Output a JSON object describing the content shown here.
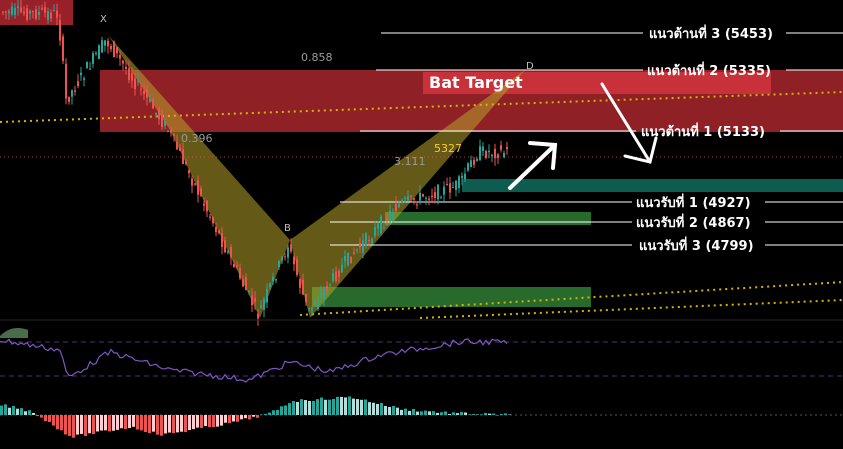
{
  "chart_data": {
    "type": "candlestick",
    "pattern": {
      "label": "Bat Target",
      "points": [
        "X",
        "B",
        "D"
      ]
    },
    "fib_ratios": [
      "0.858",
      "0.396",
      "3.111"
    ],
    "last_price_label": "5327",
    "resistance": [
      {
        "label": "แนวต้านที่  3 (5453)",
        "value": 5453
      },
      {
        "label": "แนวต้านที่  2 (5335)",
        "value": 5335
      },
      {
        "label": "แนวต้านที่ 1 (5133)",
        "value": 5133
      }
    ],
    "support": [
      {
        "label": "แนวรับที่ 1 (4927)",
        "value": 4927
      },
      {
        "label": "แนวรับที่ 2 (4867)",
        "value": 4867
      },
      {
        "label": "แนวรับที่ 3 (4799)",
        "value": 4799
      }
    ],
    "colors": {
      "up": "#26a69a",
      "down": "#ef5350",
      "resistance_zone": "#b3262f",
      "support_zone": "#2e7d32",
      "teal_zone": "#0d5c4f",
      "pattern_fill": "#b8a22a",
      "oscillator": "#7e57c2",
      "dotted_trend": "#d4b400"
    }
  }
}
